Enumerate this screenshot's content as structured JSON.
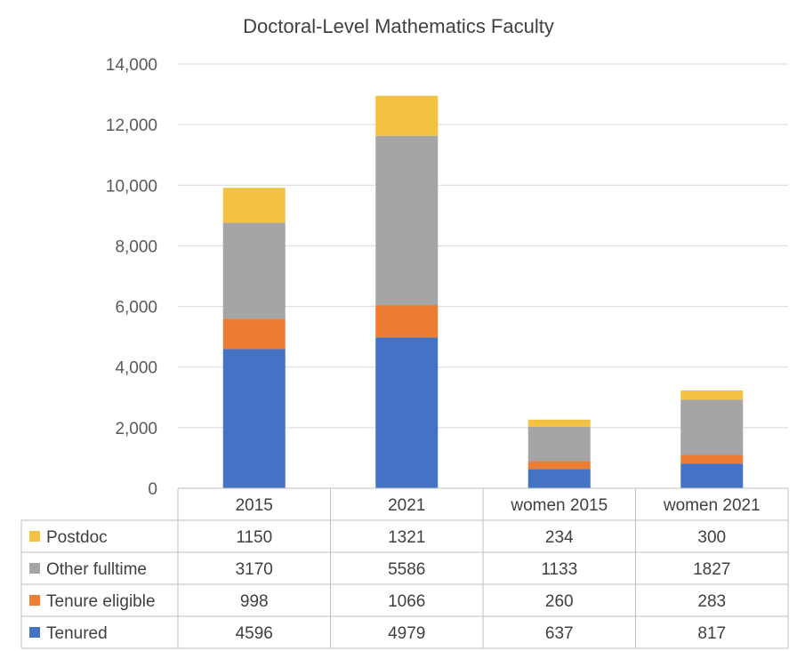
{
  "chart_data": {
    "type": "bar",
    "stacked": true,
    "title": "Doctoral-Level Mathematics Faculty",
    "categories": [
      "2015",
      "2021",
      "women 2015",
      "women 2021"
    ],
    "ylim": [
      0,
      14000
    ],
    "yticks": [
      "0",
      "2,000",
      "4,000",
      "6,000",
      "8,000",
      "10,000",
      "12,000",
      "14,000"
    ],
    "ytick_values": [
      0,
      2000,
      4000,
      6000,
      8000,
      10000,
      12000,
      14000
    ],
    "grid": true,
    "legend": "data-table-left",
    "series": [
      {
        "name": "Tenured",
        "color": "#4472C4",
        "values": [
          4596,
          4979,
          637,
          817
        ]
      },
      {
        "name": "Tenure eligible",
        "color": "#ED7D31",
        "values": [
          998,
          1066,
          260,
          283
        ]
      },
      {
        "name": "Other fulltime",
        "color": "#A5A5A5",
        "values": [
          3170,
          5586,
          1133,
          1827
        ]
      },
      {
        "name": "Postdoc",
        "color": "#F4C242",
        "values": [
          1150,
          1321,
          234,
          300
        ]
      }
    ],
    "table_rows": [
      {
        "series": "Postdoc",
        "color": "#F4C242",
        "values": [
          "1150",
          "1321",
          "234",
          "300"
        ]
      },
      {
        "series": "Other fulltime",
        "color": "#A5A5A5",
        "values": [
          "3170",
          "5586",
          "1133",
          "1827"
        ]
      },
      {
        "series": "Tenure eligible",
        "color": "#ED7D31",
        "values": [
          "998",
          "1066",
          "260",
          "283"
        ]
      },
      {
        "series": "Tenured",
        "color": "#4472C4",
        "values": [
          "4596",
          "4979",
          "637",
          "817"
        ]
      }
    ]
  }
}
